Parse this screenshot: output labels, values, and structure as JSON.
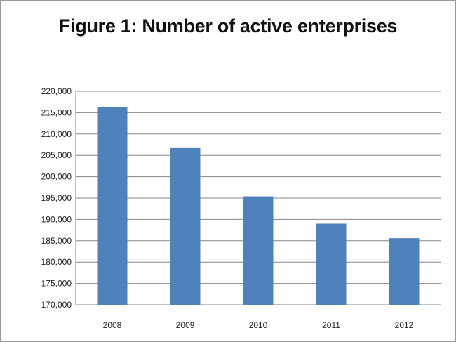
{
  "chart_data": {
    "type": "bar",
    "title": "Figure 1: Number of active enterprises",
    "xlabel": "",
    "ylabel": "",
    "categories": [
      "2008",
      "2009",
      "2010",
      "2011",
      "2012"
    ],
    "values": [
      216300,
      206700,
      195400,
      189000,
      185600
    ],
    "ylim": [
      170000,
      220000
    ],
    "ytick_step": 5000,
    "ytick_labels": [
      "170,000",
      "175,000",
      "180,000",
      "185,000",
      "190,000",
      "195,000",
      "200,000",
      "205,000",
      "210,000",
      "215,000",
      "220,000"
    ],
    "grid": true,
    "legend": "none",
    "bar_color": "#4f81bd",
    "grid_color": "#868686"
  }
}
